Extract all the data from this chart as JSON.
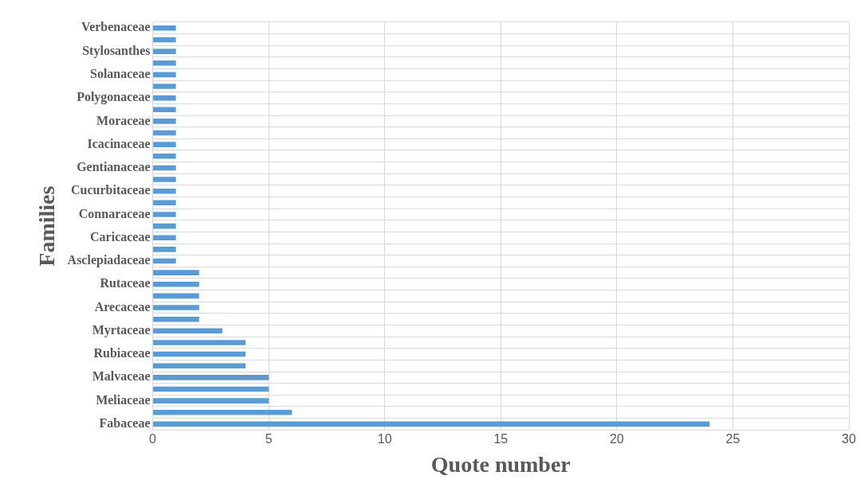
{
  "chart_data": {
    "type": "bar",
    "orientation": "horizontal",
    "xlabel": "Quote number",
    "ylabel": "Families",
    "categories": [
      "Verbenaceae",
      null,
      "Stylosanthes",
      null,
      "Solanaceae",
      null,
      "Polygonaceae",
      null,
      "Moraceae",
      null,
      "Icacinaceae",
      null,
      "Gentianaceae",
      null,
      "Cucurbitaceae",
      null,
      "Connaraceae",
      null,
      "Caricaceae",
      null,
      "Asclepiadaceae",
      null,
      "Rutaceae",
      null,
      "Arecaceae",
      null,
      "Myrtaceae",
      null,
      "Rubiaceae",
      null,
      "Malvaceae",
      null,
      "Meliaceae",
      null,
      "Fabaceae"
    ],
    "values": [
      1,
      1,
      1,
      1,
      1,
      1,
      1,
      1,
      1,
      1,
      1,
      1,
      1,
      1,
      1,
      1,
      1,
      1,
      1,
      1,
      1,
      2,
      2,
      2,
      2,
      2,
      3,
      4,
      4,
      4,
      5,
      5,
      5,
      6,
      24
    ],
    "color": "#5b9bd5",
    "xlim": [
      0,
      30
    ],
    "xticks": [
      0,
      5,
      10,
      15,
      20,
      25,
      30
    ],
    "grid": true,
    "legend": false
  }
}
